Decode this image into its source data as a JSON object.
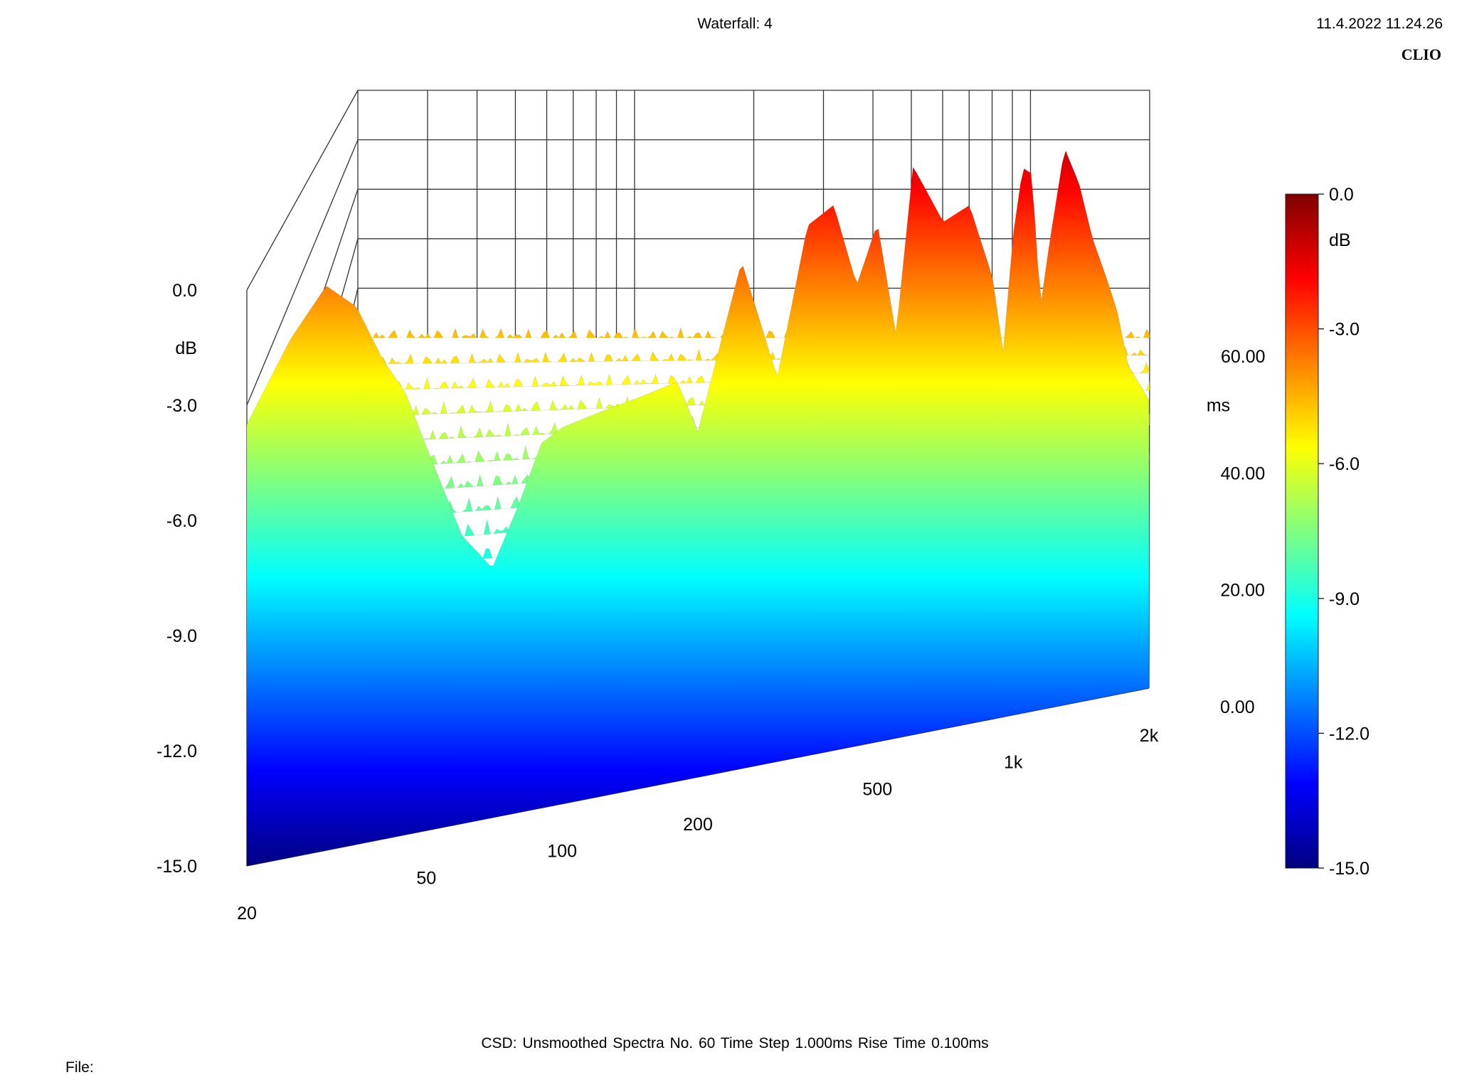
{
  "header": {
    "title": "Waterfall: 4",
    "timestamp": "11.4.2022 11.24.26",
    "brand": "CLIO"
  },
  "footer": {
    "settings": "CSD:   Unsmoothed   Spectra No. 60   Time Step 1.000ms   Rise Time 0.100ms",
    "file_label": "File:"
  },
  "chart_data": {
    "type": "waterfall",
    "z_axis": {
      "unit": "dB",
      "range": [
        -15.0,
        0.0
      ],
      "ticks": [
        "0.0",
        "-3.0",
        "-6.0",
        "-9.0",
        "-12.0",
        "-15.0"
      ]
    },
    "x_axis": {
      "scale": "log",
      "range": [
        20,
        2000
      ],
      "ticks": [
        "20",
        "50",
        "100",
        "200",
        "500",
        "1k",
        "2k"
      ]
    },
    "y_axis": {
      "unit": "ms",
      "range": [
        0,
        60
      ],
      "ticks": [
        "0.00",
        "20.00",
        "40.00",
        "60.00"
      ]
    },
    "colorbar": {
      "unit": "dB",
      "range": [
        -15.0,
        0.0
      ],
      "ticks": [
        "0.0",
        "-3.0",
        "-6.0",
        "-9.0",
        "-12.0",
        "-15.0"
      ],
      "colors": [
        "#800000",
        "#ff0000",
        "#ff8000",
        "#ffff00",
        "#80ff80",
        "#00ffff",
        "#0080ff",
        "#0000ff",
        "#000080"
      ]
    },
    "initial_response": {
      "freq_hz": [
        20,
        25,
        30,
        35,
        40,
        45,
        50,
        60,
        70,
        80,
        90,
        100,
        120,
        150,
        180,
        200,
        250,
        300,
        350,
        400,
        450,
        500,
        550,
        600,
        700,
        800,
        900,
        950,
        1000,
        1050,
        1100,
        1150,
        1200,
        1300,
        1400,
        1500,
        1600,
        1700,
        1800,
        1900,
        2000
      ],
      "db": [
        -3.5,
        -1.5,
        -0.3,
        -1.0,
        -2.5,
        -3.5,
        -5.0,
        -7.5,
        -8.5,
        -7.0,
        -5.5,
        -5.2,
        -5.0,
        -4.8,
        -4.6,
        -6.0,
        -1.8,
        -5.0,
        -1.2,
        -0.8,
        -3.0,
        -1.5,
        -4.5,
        -0.2,
        -1.8,
        -1.5,
        -3.5,
        -5.5,
        -2.5,
        -0.8,
        -1.0,
        -4.5,
        -3.0,
        -0.5,
        -1.5,
        -3.0,
        -4.0,
        -5.0,
        -6.5,
        -7.0,
        -7.5
      ]
    },
    "decay_ms_to_-15db": {
      "freq_hz": [
        20,
        40,
        100,
        200,
        300,
        400,
        500,
        600,
        800,
        1000,
        1100,
        1200,
        1500,
        2000
      ],
      "ms": [
        8,
        4,
        5,
        6,
        30,
        28,
        25,
        45,
        45,
        50,
        50,
        48,
        42,
        35
      ]
    }
  }
}
